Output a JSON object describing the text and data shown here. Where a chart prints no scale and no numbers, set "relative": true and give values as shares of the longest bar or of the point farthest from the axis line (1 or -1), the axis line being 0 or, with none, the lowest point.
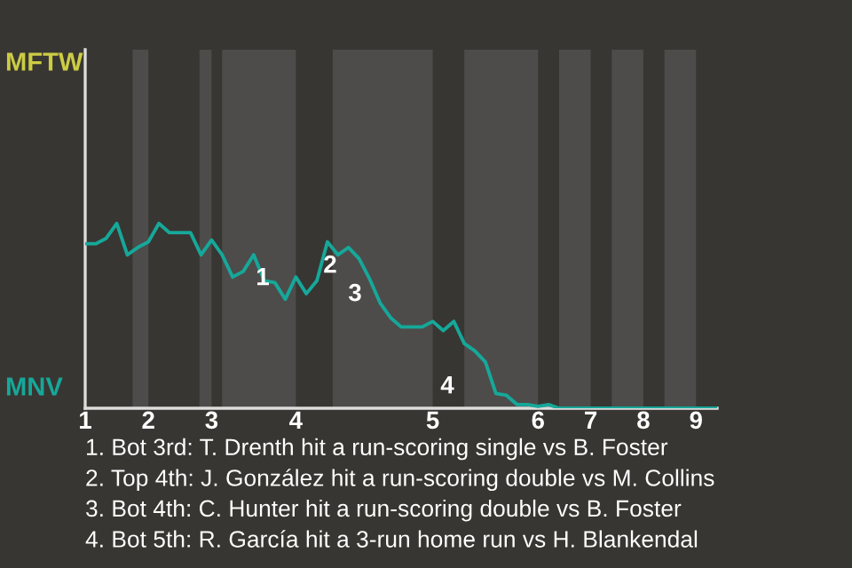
{
  "chart_data": {
    "type": "line",
    "relative": true,
    "categories": [
      "1",
      null,
      null,
      null,
      null,
      null,
      "2",
      null,
      null,
      null,
      null,
      null,
      "3",
      null,
      null,
      null,
      null,
      null,
      null,
      null,
      "4",
      null,
      null,
      null,
      null,
      null,
      null,
      null,
      null,
      null,
      null,
      null,
      null,
      "5",
      null,
      null,
      null,
      null,
      null,
      null,
      null,
      null,
      null,
      "6",
      null,
      null,
      null,
      null,
      "7",
      null,
      null,
      null,
      null,
      "8",
      null,
      null,
      null,
      null,
      "9",
      null,
      null
    ],
    "series": [
      {
        "color": "#16a89a",
        "values": [
          0.89,
          0.89,
          0.92,
          1.0,
          0.83,
          0.87,
          0.9,
          1.0,
          0.95,
          0.95,
          0.95,
          0.83,
          0.91,
          0.83,
          0.71,
          0.74,
          0.83,
          0.69,
          0.68,
          0.59,
          0.71,
          0.62,
          0.69,
          0.9,
          0.83,
          0.87,
          0.81,
          0.7,
          0.57,
          0.49,
          0.44,
          0.44,
          0.44,
          0.47,
          0.42,
          0.47,
          0.35,
          0.31,
          0.25,
          0.08,
          0.07,
          0.02,
          0.02,
          0.01,
          0.02,
          0,
          0,
          0,
          0,
          0,
          0,
          0,
          0,
          0,
          0,
          0,
          0,
          0,
          0,
          0,
          0
        ]
      }
    ],
    "annotations": [
      "MFTW",
      "MNV",
      "1",
      "2",
      "3",
      "4",
      "1. Bot 3rd: T. Drenth hit a run-scoring single vs B. Foster",
      "2. Top 4th: J. González hit a run-scoring double vs M. Collins",
      "3. Bot 4th: C. Hunter hit a run-scoring double vs B. Foster",
      "4. Bot 5th: R. García hit a 3-run home run vs H. Blankendal"
    ]
  }
}
